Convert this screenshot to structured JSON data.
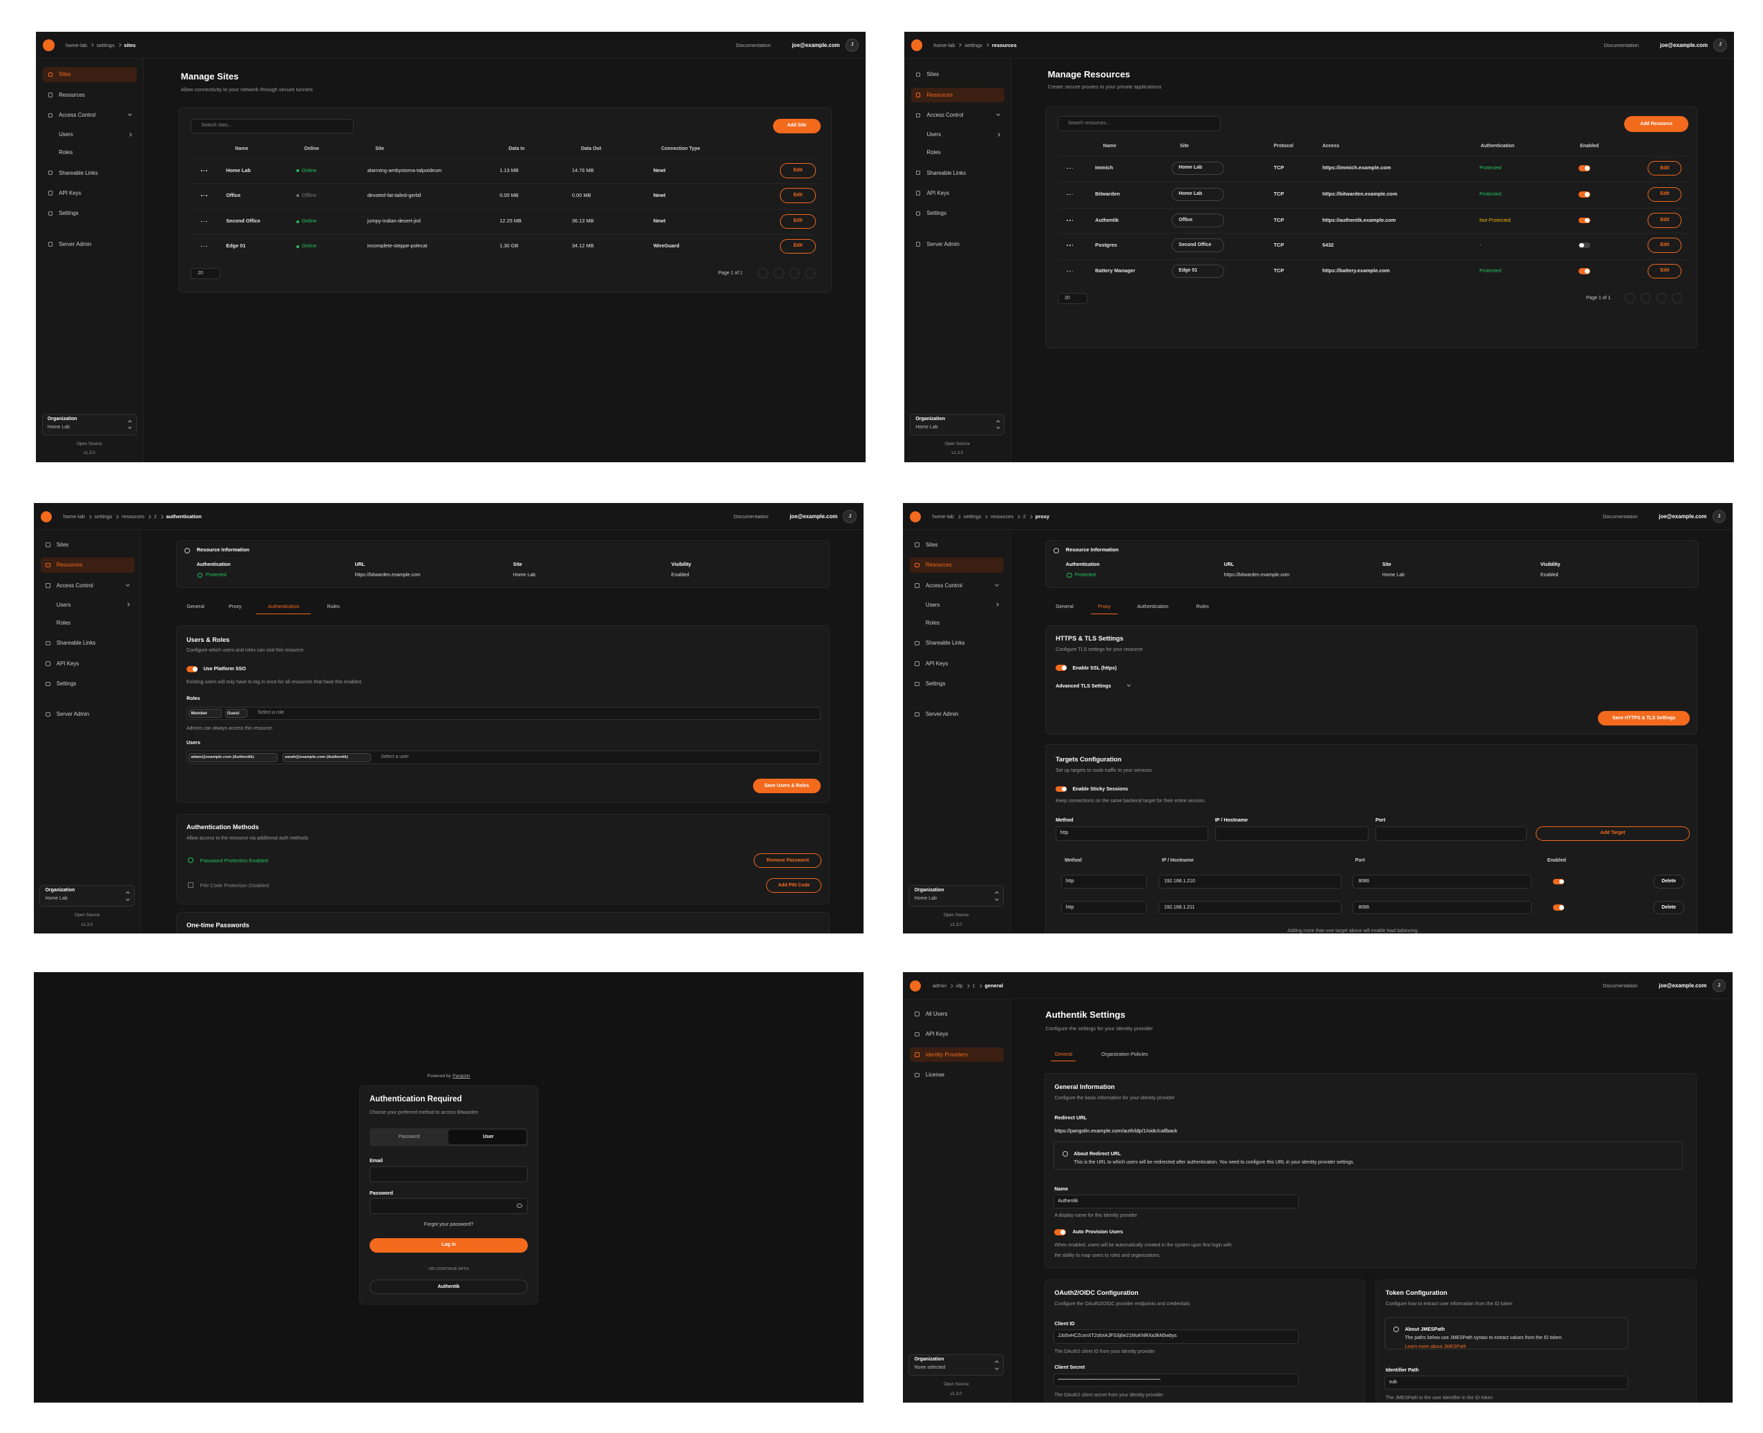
{
  "header": {
    "documentation": "Documentation",
    "user": "joe@example.com",
    "avatar": "J"
  },
  "sidebar": {
    "nav": [
      "Sites",
      "Resources",
      "Access Control",
      "Users",
      "Roles",
      "Shareable Links",
      "API Keys",
      "Settings",
      "Server Admin"
    ],
    "organization": "Organization",
    "org_name": "Home Lab",
    "open_source": "Open Source",
    "version": "v1.3.0"
  },
  "idp_sidebar": {
    "nav": [
      "All Users",
      "API Keys",
      "Identity Providers",
      "License"
    ],
    "org_name": "None selected"
  },
  "sites_page": {
    "breadcrumb": [
      "home-lab",
      "settings",
      "sites"
    ],
    "title": "Manage Sites",
    "subtitle": "Allow connectivity to your network through secure tunnels",
    "search": "Search sites...",
    "add_button": "Add Site",
    "columns": [
      "Name",
      "Online",
      "Site",
      "Data In",
      "Data Out",
      "Connection Type"
    ],
    "rows": [
      [
        "Home Lab",
        "Online",
        "alarming-ambystoma-talpoideum",
        "1.13 MB",
        "14.76 MB",
        "Newt"
      ],
      [
        "Office",
        "Offline",
        "devoted-fat-tailed-gerbil",
        "0.00 MB",
        "0.00 MB",
        "Newt"
      ],
      [
        "Second Office",
        "Online",
        "jumpy-indian-desert-jird",
        "12.25 MB",
        "36.13 MB",
        "Newt"
      ],
      [
        "Edge 01",
        "Online",
        "incomplete-steppe-polecat",
        "1.30 GB",
        "34.12 MB",
        "WireGuard"
      ]
    ],
    "status_colors": [
      "#22c55e",
      "#777777",
      "#22c55e",
      "#22c55e"
    ],
    "edit": "Edit",
    "page_size": "20",
    "page_info": "Page 1 of 1"
  },
  "resources_page": {
    "breadcrumb": [
      "home-lab",
      "settings",
      "resources"
    ],
    "title": "Manage Resources",
    "subtitle": "Create secure proxies to your private applications",
    "search": "Search resources...",
    "add_button": "Add Resource",
    "columns": [
      "Name",
      "Site",
      "Protocol",
      "Access",
      "Authentication",
      "Enabled"
    ],
    "rows": [
      [
        "Immich",
        "Home Lab",
        "TCP",
        "https://immich.example.com",
        "Protected"
      ],
      [
        "Bitwarden",
        "Home Lab",
        "TCP",
        "https://bitwarden.example.com",
        "Protected"
      ],
      [
        "Authentik",
        "Office",
        "TCP",
        "https://authentik.example.com",
        "Not Protected"
      ],
      [
        "Postgres",
        "Second Office",
        "TCP",
        "5432",
        "-"
      ],
      [
        "Battery Manager",
        "Edge 01",
        "TCP",
        "https://battery.example.com",
        "Protected"
      ]
    ],
    "auth_colors": [
      "#22c55e",
      "#22c55e",
      "#eab308",
      "#bbbbbb",
      "#22c55e"
    ],
    "enabled": [
      true,
      true,
      true,
      false,
      true
    ],
    "edit": "Edit",
    "page_size": "20",
    "page_info": "Page 1 of 1"
  },
  "resource_info": {
    "title": "Resource Information",
    "labels": [
      "Authentication",
      "URL",
      "Site",
      "Visibility"
    ],
    "values": [
      "Protected",
      "https://bitwarden.example.com",
      "Home Lab",
      "Enabled"
    ]
  },
  "resource_tabs": [
    "General",
    "Proxy",
    "Authentication",
    "Rules"
  ],
  "auth_page": {
    "breadcrumb": [
      "home-lab",
      "settings",
      "resources",
      "2",
      "authentication"
    ],
    "active_tab": 2,
    "users_roles": {
      "title": "Users & Roles",
      "description": "Configure which users and roles can visit this resource",
      "sso": "Use Platform SSO",
      "sso_note": "Existing users will only have to log in once for all resources that have this enabled.",
      "roles_label": "Roles",
      "roles": [
        "Member",
        "Guest"
      ],
      "roles_placeholder": "Select a role",
      "admins_note": "Admins can always access this resource.",
      "users_label": "Users",
      "users": [
        "adam@example.com (Authentik)",
        "sarah@example.com (Authentik)"
      ],
      "users_placeholder": "Select a user",
      "save": "Save Users & Roles"
    },
    "methods": {
      "title": "Authentication Methods",
      "description": "Allow access to the resource via additional auth methods",
      "password": "Password Protection Enabled",
      "remove_password": "Remove Password",
      "pin": "PIN Code Protection Disabled",
      "add_pin": "Add PIN Code"
    },
    "otp_title": "One-time Passwords"
  },
  "proxy_page": {
    "breadcrumb": [
      "home-lab",
      "settings",
      "resources",
      "2",
      "proxy"
    ],
    "active_tab": 1,
    "tls": {
      "title": "HTTPS & TLS Settings",
      "description": "Configure TLS settings for your resource",
      "enable_ssl": "Enable SSL (https)",
      "advanced": "Advanced TLS Settings",
      "save": "Save HTTPS & TLS Settings"
    },
    "targets": {
      "title": "Targets Configuration",
      "description": "Set up targets to route traffic to your services",
      "sticky": "Enable Sticky Sessions",
      "sticky_note": "Keep connections on the same backend target for their entire session.",
      "form_labels": [
        "Method",
        "IP / Hostname",
        "Port"
      ],
      "form_method": "http",
      "add_target": "Add Target",
      "table_headers": [
        "Method",
        "IP / Hostname",
        "Port",
        "Enabled"
      ],
      "rows": [
        [
          "http",
          "192.168.1.210",
          "8086"
        ],
        [
          "http",
          "192.168.1.211",
          "8086"
        ]
      ],
      "delete": "Delete",
      "note": "Adding more than one target above will enable load balancing."
    }
  },
  "login_page": {
    "powered_by": "Powered by",
    "brand": "Pangolin",
    "title": "Authentication Required",
    "description": "Choose your preferred method to access Bitwarden",
    "tabs": [
      "Password",
      "User"
    ],
    "email": "Email",
    "password": "Password",
    "forgot": "Forgot your password?",
    "login": "Log in",
    "or": "OR CONTINUE WITH",
    "provider": "Authentik"
  },
  "idp_page": {
    "breadcrumb": [
      "admin",
      "idp",
      "1",
      "general"
    ],
    "title": "Authentik Settings",
    "subtitle": "Configure the settings for your identity provider",
    "tabs": [
      "General",
      "Organization Policies"
    ],
    "general": {
      "title": "General Information",
      "description": "Configure the basic information for your identity provider",
      "redirect_label": "Redirect URL",
      "redirect_url": "https://pangolin.example.com/auth/idp/1/oidc/callback",
      "about_title": "About Redirect URL",
      "about_text": "This is the URL to which users will be redirected after authentication. You need to configure this URL in your identity provider settings.",
      "name_label": "Name",
      "name_value": "Authentik",
      "name_help": "A display name for this identity provider",
      "auto_provision": "Auto Provision Users",
      "auto_help": [
        "When enabled, users will be automatically created in the system upon first login with",
        "the ability to map users to roles and organizations."
      ]
    },
    "oauth": {
      "title": "OAuth2/OIDC Configuration",
      "description": "Configure the OAuth2/OIDC provider endpoints and credentials",
      "client_id_label": "Client ID",
      "client_id": "JJo5vHCZcxnXT2sfoIAJFSSj6e21MuKNRXa3kN5wbys",
      "client_id_help": "The OAuth2 client ID from your identity provider",
      "secret_label": "Client Secret",
      "secret": "••••••••••••••••••••••••••••••••••••••••••••••••••••••••••••••••••••••••",
      "secret_help": "The OAuth2 client secret from your identity provider"
    },
    "token": {
      "title": "Token Configuration",
      "description": "Configure how to extract user information from the ID token",
      "about_title": "About JMESPath",
      "about_text": "The paths below use JMESPath syntax to extract values from the ID token.",
      "learn_more": "Learn more about JMESPath",
      "identifier_label": "Identifier Path",
      "identifier": "sub",
      "identifier_help": "The JMESPath to the user identifier in the ID token"
    }
  }
}
